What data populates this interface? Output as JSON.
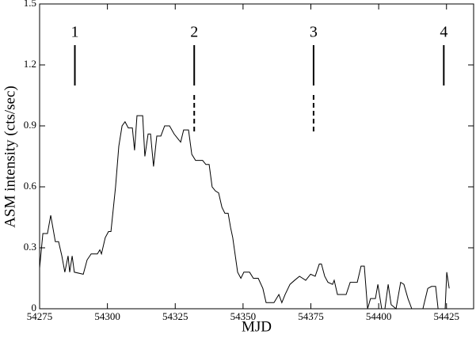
{
  "chart_data": {
    "type": "line",
    "xlabel": "MJD",
    "ylabel": "ASM intensity (cts/sec)",
    "xlim": [
      54275,
      54435
    ],
    "ylim": [
      0,
      1.5
    ],
    "xticks": [
      54275,
      54300,
      54325,
      54350,
      54375,
      54400,
      54425
    ],
    "yticks": [
      0,
      0.3,
      0.6,
      0.9,
      1.2,
      1.5
    ],
    "series": [
      {
        "color": "#000000",
        "x": [
          54275.0,
          54276.2,
          54277.9,
          54279.1,
          54280.8,
          54282.0,
          54283.2,
          54284.3,
          54285.5,
          54286.1,
          54287.0,
          54287.8,
          54291.1,
          54292.5,
          54294.0,
          54296.3,
          54297.2,
          54297.8,
          54299.2,
          54300.4,
          54301.3,
          54303.0,
          54304.2,
          54305.4,
          54306.5,
          54307.7,
          54309.2,
          54310.0,
          54310.9,
          54313.0,
          54313.8,
          54315.0,
          54315.9,
          54317.0,
          54318.2,
          54319.7,
          54321.1,
          54322.9,
          54324.6,
          54325.8,
          54327.0,
          54328.1,
          54329.9,
          54331.1,
          54332.5,
          54335.1,
          54336.3,
          54337.5,
          54338.6,
          54339.8,
          54341.0,
          54342.2,
          54343.3,
          54344.5,
          54345.4,
          54346.2,
          54348.0,
          54349.2,
          54350.3,
          54352.4,
          54353.8,
          54355.6,
          54357.3,
          54358.5,
          54361.4,
          54363.2,
          54364.3,
          54365.5,
          54367.3,
          54369.0,
          54370.8,
          54373.1,
          54374.9,
          54376.6,
          54378.1,
          54378.9,
          54380.1,
          54381.3,
          54383.0,
          54383.6,
          54384.8,
          54388.0,
          54389.5,
          54392.1,
          54393.5,
          54394.7,
          54395.9,
          54397.0,
          54398.8,
          54399.7,
          54401.1,
          54402.3,
          54403.5,
          54404.6,
          54406.4,
          54408.1,
          54409.3,
          54410.8,
          54412.2,
          54416.3,
          54418.1,
          54419.5,
          54421.0,
          54421.9,
          54424.5,
          54425.1,
          54426.0
        ],
        "values": [
          0.2,
          0.37,
          0.37,
          0.46,
          0.33,
          0.33,
          0.26,
          0.18,
          0.26,
          0.18,
          0.26,
          0.18,
          0.17,
          0.24,
          0.27,
          0.27,
          0.29,
          0.27,
          0.35,
          0.38,
          0.38,
          0.6,
          0.8,
          0.9,
          0.92,
          0.89,
          0.89,
          0.78,
          0.95,
          0.95,
          0.75,
          0.86,
          0.86,
          0.7,
          0.85,
          0.85,
          0.9,
          0.9,
          0.86,
          0.84,
          0.82,
          0.88,
          0.88,
          0.76,
          0.73,
          0.73,
          0.71,
          0.71,
          0.6,
          0.58,
          0.57,
          0.5,
          0.47,
          0.47,
          0.4,
          0.35,
          0.18,
          0.15,
          0.18,
          0.18,
          0.15,
          0.15,
          0.1,
          0.03,
          0.03,
          0.07,
          0.03,
          0.07,
          0.12,
          0.14,
          0.16,
          0.14,
          0.17,
          0.16,
          0.22,
          0.22,
          0.16,
          0.13,
          0.12,
          0.14,
          0.07,
          0.07,
          0.13,
          0.13,
          0.21,
          0.21,
          0,
          0.05,
          0.05,
          0.12,
          0,
          0,
          0.12,
          0.02,
          0,
          0.13,
          0.12,
          0.05,
          0,
          0,
          0.1,
          0.11,
          0.11,
          0,
          0,
          0.18,
          0.1
        ]
      }
    ],
    "annotations": [
      {
        "text": "1",
        "x": 54288
      },
      {
        "text": "2",
        "x": 54332,
        "dashed": true
      },
      {
        "text": "3",
        "x": 54376,
        "dashed": true
      },
      {
        "text": "4",
        "x": 54424
      }
    ]
  }
}
